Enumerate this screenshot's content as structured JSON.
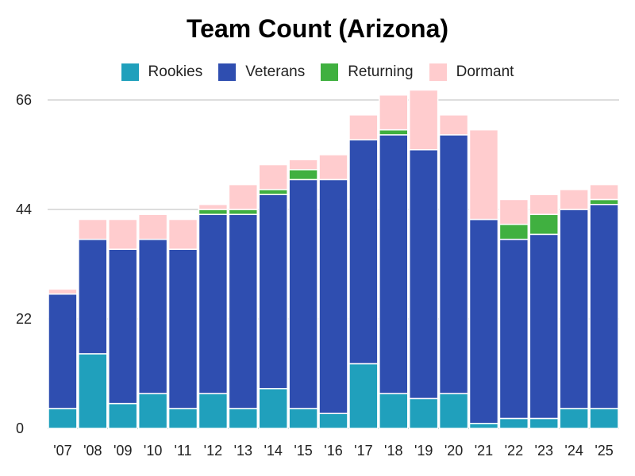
{
  "chart_data": {
    "type": "bar",
    "stacked": true,
    "title": "Team Count (Arizona)",
    "categories": [
      "'07",
      "'08",
      "'09",
      "'10",
      "'11",
      "'12",
      "'13",
      "'14",
      "'15",
      "'16",
      "'17",
      "'18",
      "'19",
      "'20",
      "'21",
      "'22",
      "'23",
      "'24",
      "'25"
    ],
    "series": [
      {
        "name": "Rookies",
        "color": "#20a0bc",
        "values": [
          4,
          15,
          5,
          7,
          4,
          7,
          4,
          8,
          4,
          3,
          13,
          7,
          6,
          7,
          1,
          2,
          2,
          4,
          4
        ]
      },
      {
        "name": "Veterans",
        "color": "#2f4eb0",
        "values": [
          23,
          23,
          31,
          31,
          32,
          36,
          39,
          39,
          46,
          47,
          45,
          52,
          50,
          52,
          41,
          36,
          37,
          40,
          41
        ]
      },
      {
        "name": "Returning",
        "color": "#40b040",
        "values": [
          0,
          0,
          0,
          0,
          0,
          1,
          1,
          1,
          2,
          0,
          0,
          1,
          0,
          0,
          0,
          3,
          4,
          0,
          1
        ]
      },
      {
        "name": "Dormant",
        "color": "#ffccce",
        "values": [
          1,
          4,
          6,
          5,
          6,
          1,
          5,
          5,
          2,
          5,
          5,
          7,
          12,
          4,
          18,
          5,
          4,
          4,
          3
        ]
      }
    ],
    "yticks": [
      "0",
      "22",
      "44",
      "66"
    ],
    "ylim": [
      0,
      66
    ],
    "xlabel": "",
    "ylabel": "",
    "grid": true,
    "legend_position": "top-center"
  }
}
